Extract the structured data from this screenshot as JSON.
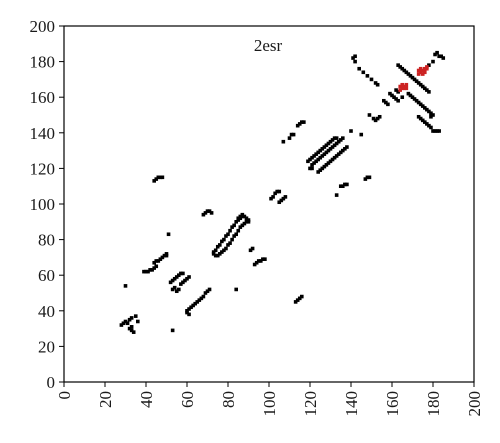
{
  "chart_data": {
    "type": "scatter",
    "title": "2esr",
    "xlabel": "",
    "ylabel": "",
    "xlim": [
      0,
      200
    ],
    "ylim": [
      0,
      200
    ],
    "x_ticks": [
      "0",
      "20",
      "40",
      "60",
      "80",
      "100",
      "120",
      "140",
      "160",
      "180",
      "200"
    ],
    "y_ticks": [
      "0",
      "20",
      "40",
      "60",
      "80",
      "100",
      "120",
      "140",
      "160",
      "180",
      "200"
    ],
    "grid": false,
    "colors": {
      "contact": "#000000",
      "highlight": "#cc2222"
    },
    "series": [
      {
        "color": "#000000",
        "points": [
          [
            30,
            54
          ],
          [
            28,
            32
          ],
          [
            29,
            33
          ],
          [
            30,
            34
          ],
          [
            31,
            33
          ],
          [
            32,
            35
          ],
          [
            33,
            36
          ],
          [
            32,
            30
          ],
          [
            33,
            29
          ],
          [
            34,
            28
          ],
          [
            33,
            31
          ],
          [
            35,
            37
          ],
          [
            36,
            34
          ],
          [
            44,
            113
          ],
          [
            45,
            114
          ],
          [
            46,
            115
          ],
          [
            47,
            115
          ],
          [
            48,
            115
          ],
          [
            51,
            83
          ],
          [
            53,
            29
          ],
          [
            39,
            62
          ],
          [
            40,
            62
          ],
          [
            41,
            62
          ],
          [
            42,
            63
          ],
          [
            43,
            63
          ],
          [
            44,
            64
          ],
          [
            45,
            65
          ],
          [
            44,
            67
          ],
          [
            45,
            68
          ],
          [
            46,
            68
          ],
          [
            47,
            69
          ],
          [
            48,
            70
          ],
          [
            49,
            71
          ],
          [
            50,
            71
          ],
          [
            50,
            72
          ],
          [
            52,
            56
          ],
          [
            53,
            57
          ],
          [
            54,
            58
          ],
          [
            55,
            59
          ],
          [
            56,
            60
          ],
          [
            57,
            61
          ],
          [
            58,
            61
          ],
          [
            57,
            55
          ],
          [
            58,
            56
          ],
          [
            59,
            57
          ],
          [
            60,
            58
          ],
          [
            61,
            59
          ],
          [
            56,
            52
          ],
          [
            55,
            51
          ],
          [
            53,
            52
          ],
          [
            54,
            53
          ],
          [
            60,
            40
          ],
          [
            61,
            41
          ],
          [
            62,
            42
          ],
          [
            63,
            43
          ],
          [
            64,
            44
          ],
          [
            65,
            45
          ],
          [
            66,
            46
          ],
          [
            67,
            47
          ],
          [
            68,
            48
          ],
          [
            69,
            50
          ],
          [
            70,
            51
          ],
          [
            71,
            52
          ],
          [
            61,
            38
          ],
          [
            60,
            39
          ],
          [
            68,
            94
          ],
          [
            69,
            95
          ],
          [
            70,
            96
          ],
          [
            71,
            96
          ],
          [
            72,
            95
          ],
          [
            74,
            74
          ],
          [
            75,
            76
          ],
          [
            76,
            77
          ],
          [
            77,
            79
          ],
          [
            78,
            80
          ],
          [
            79,
            82
          ],
          [
            80,
            83
          ],
          [
            81,
            85
          ],
          [
            82,
            87
          ],
          [
            83,
            88
          ],
          [
            84,
            90
          ],
          [
            85,
            91
          ],
          [
            86,
            92
          ],
          [
            87,
            93
          ],
          [
            77,
            73
          ],
          [
            78,
            74
          ],
          [
            79,
            75
          ],
          [
            80,
            77
          ],
          [
            81,
            78
          ],
          [
            82,
            80
          ],
          [
            83,
            82
          ],
          [
            84,
            83
          ],
          [
            85,
            85
          ],
          [
            86,
            87
          ],
          [
            87,
            88
          ],
          [
            88,
            89
          ],
          [
            89,
            90
          ],
          [
            90,
            90
          ],
          [
            90,
            91
          ],
          [
            89,
            92
          ],
          [
            88,
            93
          ],
          [
            87,
            94
          ],
          [
            86,
            93
          ],
          [
            85,
            92
          ],
          [
            73,
            73
          ],
          [
            73,
            72
          ],
          [
            74,
            71
          ],
          [
            75,
            71
          ],
          [
            76,
            72
          ],
          [
            84,
            52
          ],
          [
            91,
            74
          ],
          [
            92,
            75
          ],
          [
            93,
            66
          ],
          [
            94,
            67
          ],
          [
            95,
            68
          ],
          [
            96,
            68
          ],
          [
            97,
            69
          ],
          [
            98,
            69
          ],
          [
            101,
            103
          ],
          [
            102,
            104
          ],
          [
            103,
            106
          ],
          [
            104,
            107
          ],
          [
            105,
            107
          ],
          [
            106,
            102
          ],
          [
            107,
            103
          ],
          [
            108,
            104
          ],
          [
            105,
            101
          ],
          [
            113,
            45
          ],
          [
            114,
            46
          ],
          [
            115,
            47
          ],
          [
            116,
            48
          ],
          [
            111,
            139
          ],
          [
            112,
            139
          ],
          [
            110,
            137
          ],
          [
            114,
            144
          ],
          [
            115,
            145
          ],
          [
            116,
            146
          ],
          [
            117,
            146
          ],
          [
            107,
            135
          ],
          [
            119,
            124
          ],
          [
            120,
            125
          ],
          [
            121,
            126
          ],
          [
            122,
            127
          ],
          [
            123,
            128
          ],
          [
            124,
            129
          ],
          [
            125,
            130
          ],
          [
            126,
            131
          ],
          [
            127,
            132
          ],
          [
            128,
            133
          ],
          [
            129,
            134
          ],
          [
            130,
            135
          ],
          [
            131,
            136
          ],
          [
            132,
            137
          ],
          [
            133,
            137
          ],
          [
            121,
            122
          ],
          [
            122,
            123
          ],
          [
            123,
            124
          ],
          [
            124,
            125
          ],
          [
            125,
            126
          ],
          [
            126,
            127
          ],
          [
            127,
            128
          ],
          [
            128,
            129
          ],
          [
            129,
            130
          ],
          [
            130,
            131
          ],
          [
            131,
            132
          ],
          [
            132,
            133
          ],
          [
            133,
            134
          ],
          [
            134,
            135
          ],
          [
            135,
            136
          ],
          [
            136,
            137
          ],
          [
            121,
            120
          ],
          [
            120,
            120
          ],
          [
            124,
            118
          ],
          [
            125,
            119
          ],
          [
            126,
            120
          ],
          [
            127,
            121
          ],
          [
            128,
            122
          ],
          [
            129,
            123
          ],
          [
            130,
            124
          ],
          [
            131,
            125
          ],
          [
            132,
            126
          ],
          [
            133,
            127
          ],
          [
            134,
            128
          ],
          [
            135,
            129
          ],
          [
            136,
            130
          ],
          [
            137,
            131
          ],
          [
            138,
            132
          ],
          [
            133,
            105
          ],
          [
            135,
            110
          ],
          [
            136,
            110
          ],
          [
            137,
            111
          ],
          [
            138,
            111
          ],
          [
            147,
            114
          ],
          [
            148,
            115
          ],
          [
            149,
            115
          ],
          [
            140,
            141
          ],
          [
            145,
            139
          ],
          [
            141,
            182
          ],
          [
            142,
            183
          ],
          [
            142,
            180
          ],
          [
            144,
            176
          ],
          [
            146,
            174
          ],
          [
            148,
            172
          ],
          [
            150,
            170
          ],
          [
            152,
            168
          ],
          [
            153,
            167
          ],
          [
            149,
            150
          ],
          [
            151,
            148
          ],
          [
            152,
            147
          ],
          [
            153,
            148
          ],
          [
            154,
            149
          ],
          [
            157,
            157
          ],
          [
            158,
            156
          ],
          [
            156,
            158
          ],
          [
            159,
            162
          ],
          [
            160,
            161
          ],
          [
            161,
            160
          ],
          [
            163,
            158
          ],
          [
            162,
            159
          ],
          [
            163,
            178
          ],
          [
            164,
            177
          ],
          [
            165,
            176
          ],
          [
            166,
            175
          ],
          [
            167,
            174
          ],
          [
            168,
            173
          ],
          [
            169,
            172
          ],
          [
            170,
            171
          ],
          [
            171,
            170
          ],
          [
            172,
            169
          ],
          [
            173,
            168
          ],
          [
            174,
            167
          ],
          [
            175,
            166
          ],
          [
            176,
            165
          ],
          [
            177,
            164
          ],
          [
            178,
            163
          ],
          [
            168,
            162
          ],
          [
            169,
            161
          ],
          [
            170,
            160
          ],
          [
            171,
            159
          ],
          [
            172,
            158
          ],
          [
            173,
            157
          ],
          [
            174,
            156
          ],
          [
            175,
            155
          ],
          [
            176,
            154
          ],
          [
            177,
            153
          ],
          [
            178,
            152
          ],
          [
            179,
            151
          ],
          [
            180,
            150
          ],
          [
            179,
            149
          ],
          [
            173,
            149
          ],
          [
            174,
            148
          ],
          [
            175,
            147
          ],
          [
            176,
            146
          ],
          [
            177,
            145
          ],
          [
            178,
            144
          ],
          [
            179,
            143
          ],
          [
            180,
            141
          ],
          [
            181,
            141
          ],
          [
            182,
            141
          ],
          [
            183,
            141
          ],
          [
            180,
            180
          ],
          [
            181,
            184
          ],
          [
            182,
            185
          ],
          [
            183,
            183
          ],
          [
            184,
            183
          ],
          [
            185,
            182
          ],
          [
            178,
            178
          ],
          [
            165,
            160
          ],
          [
            163,
            163
          ],
          [
            162,
            164
          ]
        ]
      },
      {
        "color": "#cc2222",
        "points": [
          [
            164,
            164
          ],
          [
            165,
            165
          ],
          [
            166,
            166
          ],
          [
            167,
            167
          ],
          [
            164,
            166
          ],
          [
            165,
            167
          ],
          [
            166,
            165
          ],
          [
            167,
            165
          ],
          [
            173,
            173
          ],
          [
            174,
            174
          ],
          [
            175,
            175
          ],
          [
            176,
            176
          ],
          [
            173,
            175
          ],
          [
            174,
            176
          ],
          [
            175,
            173
          ],
          [
            176,
            174
          ],
          [
            177,
            176
          ],
          [
            177,
            177
          ]
        ]
      }
    ]
  }
}
